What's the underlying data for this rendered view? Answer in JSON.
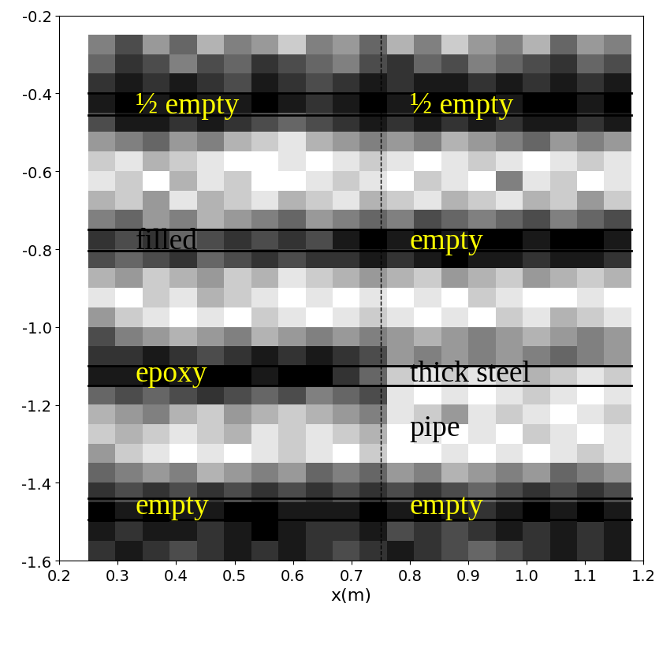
{
  "chart_data": {
    "type": "heatmap",
    "xlabel": "x(m)",
    "xlim": [
      0.2,
      1.2
    ],
    "ylim": [
      -1.6,
      -0.2
    ],
    "xticks": [
      0.2,
      0.3,
      0.4,
      0.5,
      0.6,
      0.7,
      0.8,
      0.9,
      {
        "value": 1.0,
        "label": "1.0"
      },
      1.1,
      1.2
    ],
    "yticks": [
      -0.2,
      -0.4,
      -0.6,
      -0.8,
      {
        "value": -1.0,
        "label": "-1.0"
      },
      -1.2,
      -1.4,
      -1.6
    ],
    "cells": {
      "x_range": [
        0.25,
        1.18
      ],
      "y_range": [
        -1.6,
        -0.25
      ],
      "color_range": [
        0,
        1
      ],
      "values": [
        [
          0.5,
          0.3,
          0.6,
          0.4,
          0.7,
          0.5,
          0.6,
          0.8,
          0.5,
          0.6,
          0.4,
          0.7,
          0.5,
          0.8,
          0.6,
          0.5,
          0.7,
          0.4,
          0.6,
          0.5
        ],
        [
          0.4,
          0.2,
          0.3,
          0.5,
          0.3,
          0.4,
          0.2,
          0.3,
          0.4,
          0.5,
          0.3,
          0.2,
          0.4,
          0.3,
          0.5,
          0.4,
          0.3,
          0.2,
          0.4,
          0.3
        ],
        [
          0.2,
          0.1,
          0.2,
          0.1,
          0.2,
          0.3,
          0.1,
          0.2,
          0.3,
          0.2,
          0.1,
          0.2,
          0.1,
          0.1,
          0.2,
          0.1,
          0.2,
          0.1,
          0.2,
          0.1
        ],
        [
          0.1,
          0.0,
          0.1,
          0.0,
          0.1,
          0.1,
          0.0,
          0.1,
          0.2,
          0.1,
          0.0,
          0.1,
          0.0,
          0.0,
          0.0,
          0.1,
          0.0,
          0.0,
          0.1,
          0.0
        ],
        [
          0.3,
          0.1,
          0.1,
          0.2,
          0.1,
          0.2,
          0.3,
          0.4,
          0.3,
          0.2,
          0.1,
          0.2,
          0.1,
          0.2,
          0.1,
          0.2,
          0.1,
          0.1,
          0.2,
          0.1
        ],
        [
          0.6,
          0.5,
          0.4,
          0.6,
          0.5,
          0.7,
          0.8,
          0.9,
          0.7,
          0.6,
          0.5,
          0.6,
          0.5,
          0.7,
          0.6,
          0.5,
          0.4,
          0.6,
          0.5,
          0.6
        ],
        [
          0.8,
          0.9,
          0.7,
          0.8,
          0.9,
          1.0,
          1.0,
          0.9,
          1.0,
          0.9,
          0.8,
          0.9,
          1.0,
          0.9,
          0.8,
          0.9,
          1.0,
          0.9,
          0.8,
          0.9
        ],
        [
          0.9,
          0.8,
          1.0,
          0.7,
          0.9,
          0.8,
          1.0,
          1.0,
          0.9,
          0.8,
          0.9,
          1.0,
          0.8,
          0.9,
          1.0,
          0.5,
          0.9,
          0.8,
          1.0,
          0.9
        ],
        [
          0.7,
          0.8,
          0.6,
          0.9,
          0.7,
          0.8,
          0.9,
          0.7,
          0.8,
          0.9,
          0.7,
          0.8,
          0.9,
          0.7,
          0.8,
          0.9,
          0.7,
          0.8,
          0.6,
          0.8
        ],
        [
          0.5,
          0.4,
          0.6,
          0.5,
          0.7,
          0.6,
          0.5,
          0.4,
          0.6,
          0.5,
          0.4,
          0.5,
          0.3,
          0.4,
          0.5,
          0.4,
          0.3,
          0.5,
          0.4,
          0.3
        ],
        [
          0.2,
          0.3,
          0.2,
          0.4,
          0.3,
          0.2,
          0.3,
          0.2,
          0.3,
          0.1,
          0.0,
          0.1,
          0.0,
          0.1,
          0.0,
          0.0,
          0.1,
          0.0,
          0.0,
          0.1
        ],
        [
          0.3,
          0.4,
          0.3,
          0.2,
          0.4,
          0.3,
          0.2,
          0.3,
          0.2,
          0.2,
          0.1,
          0.2,
          0.1,
          0.0,
          0.1,
          0.1,
          0.2,
          0.1,
          0.1,
          0.2
        ],
        [
          0.7,
          0.6,
          0.8,
          0.7,
          0.6,
          0.8,
          0.7,
          0.9,
          0.8,
          0.7,
          0.6,
          0.7,
          0.8,
          0.6,
          0.7,
          0.8,
          0.6,
          0.7,
          0.8,
          0.7
        ],
        [
          0.9,
          1.0,
          0.8,
          0.9,
          0.7,
          0.8,
          0.9,
          1.0,
          0.9,
          1.0,
          0.9,
          1.0,
          0.9,
          1.0,
          0.8,
          0.9,
          1.0,
          1.0,
          0.9,
          1.0
        ],
        [
          0.6,
          0.8,
          0.9,
          1.0,
          0.9,
          1.0,
          0.8,
          0.9,
          1.0,
          0.9,
          0.8,
          0.9,
          1.0,
          0.9,
          1.0,
          0.8,
          0.9,
          0.7,
          0.8,
          0.9
        ],
        [
          0.3,
          0.5,
          0.6,
          0.7,
          0.6,
          0.5,
          0.7,
          0.6,
          0.5,
          0.6,
          0.5,
          0.6,
          0.7,
          0.6,
          0.5,
          0.6,
          0.7,
          0.6,
          0.5,
          0.6
        ],
        [
          0.2,
          0.2,
          0.1,
          0.2,
          0.3,
          0.2,
          0.1,
          0.2,
          0.1,
          0.2,
          0.3,
          0.6,
          0.5,
          0.6,
          0.5,
          0.6,
          0.5,
          0.4,
          0.5,
          0.6
        ],
        [
          0.1,
          0.1,
          0.0,
          0.1,
          0.0,
          0.0,
          0.1,
          0.0,
          0.0,
          0.2,
          0.4,
          0.8,
          0.9,
          0.8,
          0.9,
          0.8,
          0.7,
          0.8,
          0.9,
          0.8
        ],
        [
          0.4,
          0.3,
          0.4,
          0.3,
          0.2,
          0.3,
          0.4,
          0.3,
          0.5,
          0.4,
          0.3,
          0.9,
          1.0,
          0.9,
          1.0,
          0.9,
          0.8,
          0.9,
          1.0,
          0.9
        ],
        [
          0.7,
          0.6,
          0.5,
          0.7,
          0.8,
          0.6,
          0.7,
          0.8,
          0.7,
          0.6,
          0.5,
          0.9,
          0.8,
          0.6,
          0.9,
          0.8,
          0.9,
          1.0,
          0.9,
          0.8
        ],
        [
          0.8,
          0.7,
          0.8,
          0.9,
          0.8,
          0.7,
          0.9,
          0.8,
          0.9,
          0.8,
          0.7,
          1.0,
          0.9,
          1.0,
          0.9,
          1.0,
          0.8,
          0.9,
          1.0,
          0.9
        ],
        [
          0.6,
          0.8,
          0.9,
          1.0,
          0.9,
          1.0,
          0.9,
          0.8,
          0.9,
          1.0,
          0.8,
          1.0,
          1.0,
          0.9,
          1.0,
          0.9,
          1.0,
          0.9,
          0.8,
          0.9
        ],
        [
          0.4,
          0.5,
          0.6,
          0.5,
          0.7,
          0.6,
          0.5,
          0.6,
          0.4,
          0.5,
          0.4,
          0.6,
          0.5,
          0.7,
          0.6,
          0.5,
          0.6,
          0.4,
          0.5,
          0.6
        ],
        [
          0.2,
          0.3,
          0.2,
          0.3,
          0.2,
          0.3,
          0.2,
          0.3,
          0.2,
          0.3,
          0.2,
          0.3,
          0.2,
          0.3,
          0.4,
          0.3,
          0.2,
          0.3,
          0.2,
          0.3
        ],
        [
          0.0,
          0.1,
          0.0,
          0.1,
          0.1,
          0.0,
          0.0,
          0.1,
          0.1,
          0.1,
          0.0,
          0.1,
          0.0,
          0.1,
          0.2,
          0.1,
          0.0,
          0.1,
          0.0,
          0.1
        ],
        [
          0.1,
          0.2,
          0.1,
          0.1,
          0.2,
          0.1,
          0.0,
          0.1,
          0.2,
          0.2,
          0.1,
          0.3,
          0.2,
          0.3,
          0.2,
          0.1,
          0.2,
          0.1,
          0.2,
          0.1
        ],
        [
          0.2,
          0.1,
          0.2,
          0.3,
          0.2,
          0.1,
          0.2,
          0.1,
          0.2,
          0.3,
          0.2,
          0.1,
          0.2,
          0.3,
          0.4,
          0.3,
          0.2,
          0.1,
          0.2,
          0.1
        ]
      ]
    },
    "lines": [
      {
        "x": [
          0.25,
          0.75
        ],
        "y": [
          -0.4,
          -0.455
        ]
      },
      {
        "x": [
          0.75,
          1.18
        ],
        "y": [
          -0.4,
          -0.455
        ]
      },
      {
        "x": [
          0.25,
          0.75
        ],
        "y": [
          -0.75,
          -0.805
        ]
      },
      {
        "x": [
          0.75,
          1.18
        ],
        "y": [
          -0.75,
          -0.805
        ]
      },
      {
        "x": [
          0.25,
          0.75
        ],
        "y": [
          -1.1,
          -1.15
        ]
      },
      {
        "x": [
          0.75,
          1.18
        ],
        "y": [
          -1.1,
          -1.15
        ]
      },
      {
        "x": [
          0.25,
          0.75
        ],
        "y": [
          -1.44,
          -1.495
        ]
      },
      {
        "x": [
          0.75,
          1.18
        ],
        "y": [
          -1.44,
          -1.495
        ]
      }
    ],
    "divider": {
      "x": 0.75,
      "y": [
        -1.6,
        -0.25
      ],
      "line_style": "dashed"
    },
    "annotations": [
      {
        "text": "½ empty",
        "x": 0.33,
        "y": -0.43,
        "color": "#ffff00"
      },
      {
        "text": "½ empty",
        "x": 0.8,
        "y": -0.43,
        "color": "#ffff00"
      },
      {
        "text": "filled",
        "x": 0.33,
        "y": -0.78,
        "color": "#000000"
      },
      {
        "text": "empty",
        "x": 0.8,
        "y": -0.78,
        "color": "#ffff00"
      },
      {
        "text": "epoxy",
        "x": 0.33,
        "y": -1.12,
        "color": "#ffff00"
      },
      {
        "text": "thick steel",
        "x": 0.8,
        "y": -1.12,
        "color": "#000000"
      },
      {
        "text": "pipe",
        "x": 0.8,
        "y": -1.26,
        "color": "#000000"
      },
      {
        "text": "empty",
        "x": 0.33,
        "y": -1.46,
        "color": "#ffff00"
      },
      {
        "text": "empty",
        "x": 0.8,
        "y": -1.46,
        "color": "#ffff00"
      }
    ]
  }
}
